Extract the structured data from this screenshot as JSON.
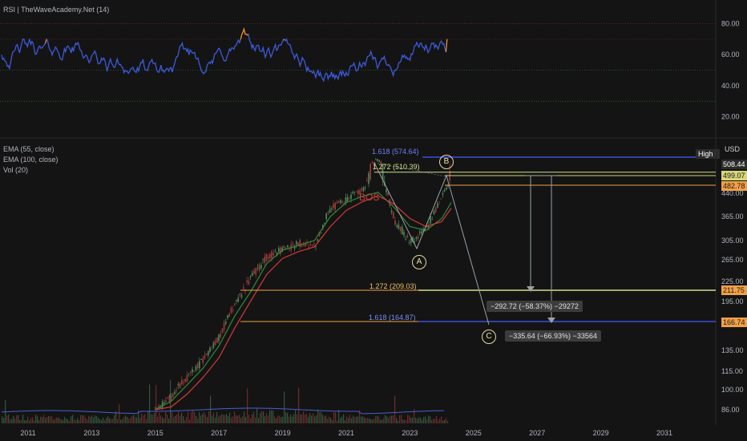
{
  "rsi_pane": {
    "title": "RSI | TheWaveAcademy.Net (14)",
    "ticks": [
      "80.00",
      "60.00",
      "40.00",
      "20.00"
    ]
  },
  "price_pane": {
    "legend": [
      "EMA (55, close)",
      "EMA (100, close)",
      "Vol (20)"
    ],
    "currency": "USD",
    "high_tag": "High",
    "price_ticks": [
      "440.00",
      "365.00",
      "305.00",
      "265.00",
      "225.00",
      "195.00",
      "135.00",
      "115.00",
      "100.00",
      "86.00"
    ],
    "price_tags": [
      {
        "value": "508.44",
        "bg": "#2b2b2b",
        "fg": "#ffffff"
      },
      {
        "value": "499.07",
        "bg": "#d6d67a",
        "fg": "#1a1a1a"
      },
      {
        "value": "482.78",
        "bg": "#f2a046",
        "fg": "#1a1a1a"
      },
      {
        "value": "211.75",
        "bg": "#f2a046",
        "fg": "#1a1a1a"
      },
      {
        "value": "166.74",
        "bg": "#f2a046",
        "fg": "#1a1a1a"
      }
    ],
    "fib_labels": [
      "1.618 (574.64)",
      "1.272 (510.39)",
      "1.272 (209.03)",
      "1.618 (164.87)"
    ],
    "bos_label": "BOS",
    "wave_labels": [
      "A",
      "B",
      "C"
    ],
    "measure_boxes": [
      "−292.72 (−58.37%) −29272",
      "−335.64 (−66.93%) −33564"
    ],
    "x_ticks": [
      "2011",
      "2013",
      "2015",
      "2017",
      "2019",
      "2021",
      "2023",
      "2025",
      "2027",
      "2029",
      "2031"
    ]
  },
  "colors": {
    "background": "#141414",
    "rsi_line": "#3d5ad7",
    "rsi_hot": "#f0942c",
    "rsi_cold": "#2ea84a",
    "ema55": "#2e8b3a",
    "ema100": "#d23a3a",
    "fib_blue": "#3b50d8",
    "fib_orange": "#f0a040",
    "fib_green": "#cfe28a"
  },
  "chart_data": {
    "type": "line",
    "title": "",
    "xlabel": "",
    "ylabel": "USD",
    "ylim": [
      80,
      620
    ],
    "x": [
      2015.0,
      2015.5,
      2016.0,
      2016.5,
      2017.0,
      2017.5,
      2018.0,
      2018.5,
      2019.0,
      2019.5,
      2020.0,
      2020.5,
      2021.0,
      2021.5,
      2022.0,
      2022.5,
      2023.0,
      2023.5,
      2024.0,
      2024.3
    ],
    "series": [
      {
        "name": "EMA (55, close)",
        "values": [
          84,
          92,
          104,
          118,
          140,
          175,
          210,
          258,
          285,
          295,
          305,
          365,
          410,
          430,
          445,
          395,
          340,
          330,
          360,
          410
        ]
      },
      {
        "name": "EMA (100, close)",
        "values": [
          82,
          88,
          97,
          110,
          128,
          160,
          196,
          238,
          268,
          282,
          292,
          340,
          385,
          412,
          432,
          405,
          360,
          340,
          352,
          392
        ]
      }
    ],
    "close_approx": [
      85,
      95,
      110,
      125,
      150,
      190,
      230,
      270,
      285,
      300,
      290,
      390,
      420,
      455,
      555,
      360,
      300,
      330,
      420,
      508.44
    ],
    "fib_levels": [
      {
        "label": "1.618 (574.64)",
        "value": 574.64
      },
      {
        "label": "1.272 (510.39)",
        "value": 510.39
      },
      {
        "label": "1.272 (209.03)",
        "value": 209.03
      },
      {
        "label": "1.618 (164.87)",
        "value": 164.87
      }
    ],
    "rsi_ylim": [
      10,
      90
    ]
  }
}
